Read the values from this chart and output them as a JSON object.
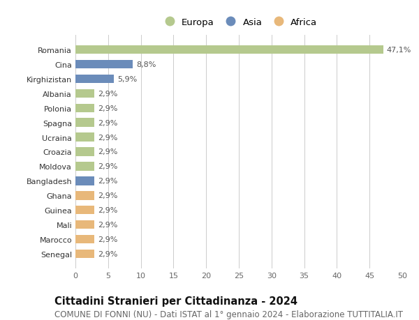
{
  "countries": [
    "Romania",
    "Cina",
    "Kirghizistan",
    "Albania",
    "Polonia",
    "Spagna",
    "Ucraina",
    "Croazia",
    "Moldova",
    "Bangladesh",
    "Ghana",
    "Guinea",
    "Mali",
    "Marocco",
    "Senegal"
  ],
  "values": [
    47.1,
    8.8,
    5.9,
    2.9,
    2.9,
    2.9,
    2.9,
    2.9,
    2.9,
    2.9,
    2.9,
    2.9,
    2.9,
    2.9,
    2.9
  ],
  "labels": [
    "47,1%",
    "8,8%",
    "5,9%",
    "2,9%",
    "2,9%",
    "2,9%",
    "2,9%",
    "2,9%",
    "2,9%",
    "2,9%",
    "2,9%",
    "2,9%",
    "2,9%",
    "2,9%",
    "2,9%"
  ],
  "continents": [
    "Europa",
    "Asia",
    "Asia",
    "Europa",
    "Europa",
    "Europa",
    "Europa",
    "Europa",
    "Europa",
    "Asia",
    "Africa",
    "Africa",
    "Africa",
    "Africa",
    "Africa"
  ],
  "colors": {
    "Europa": "#b5c98e",
    "Asia": "#6b8cba",
    "Africa": "#e8b87a"
  },
  "xlim": [
    0,
    50
  ],
  "xticks": [
    0,
    5,
    10,
    15,
    20,
    25,
    30,
    35,
    40,
    45,
    50
  ],
  "title": "Cittadini Stranieri per Cittadinanza - 2024",
  "subtitle": "COMUNE DI FONNI (NU) - Dati ISTAT al 1° gennaio 2024 - Elaborazione TUTTITALIA.IT",
  "bg_color": "#ffffff",
  "grid_color": "#cccccc",
  "bar_height": 0.6,
  "title_fontsize": 10.5,
  "subtitle_fontsize": 8.5,
  "label_fontsize": 8,
  "tick_fontsize": 8,
  "legend_fontsize": 9.5
}
